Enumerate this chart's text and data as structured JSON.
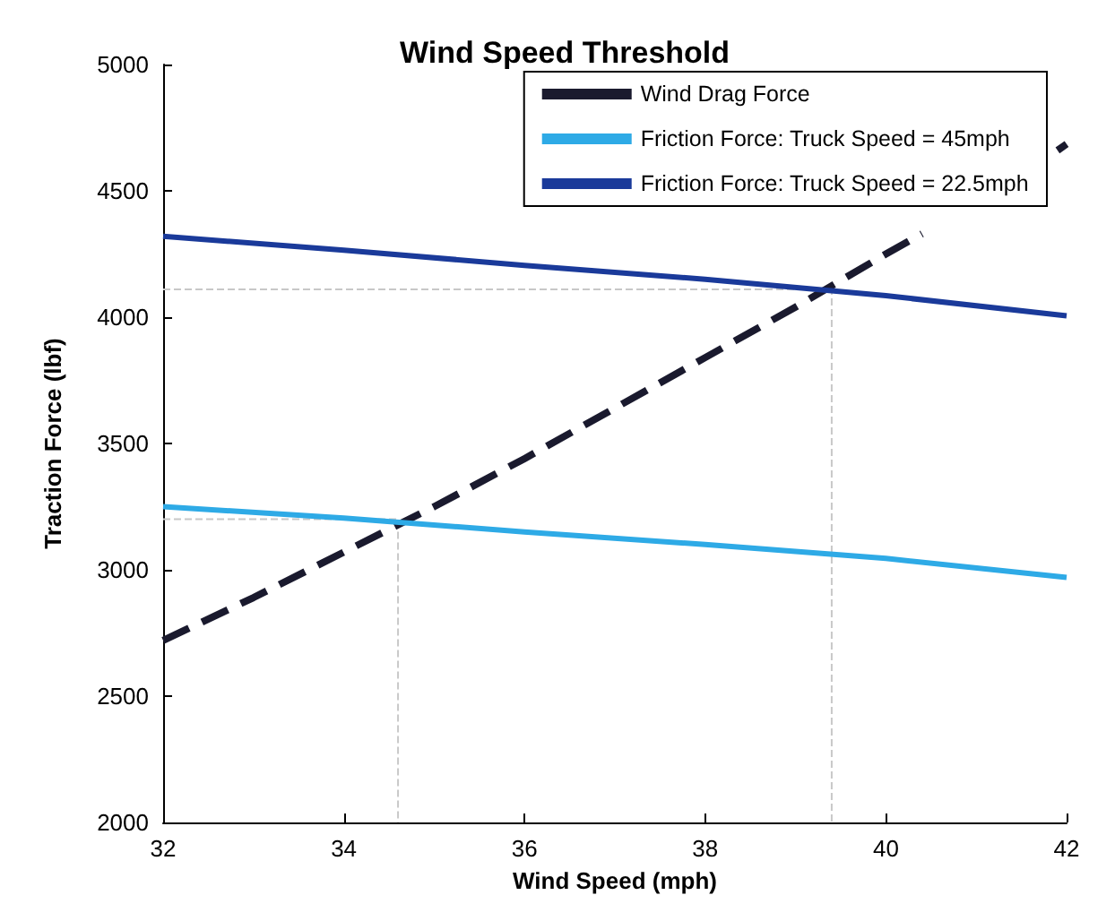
{
  "chart_data": {
    "type": "line",
    "title": "Wind Speed Threshold",
    "xlabel": "Wind Speed (mph)",
    "ylabel": "Traction Force (lbf)",
    "xlim": [
      32,
      42
    ],
    "xticks": [
      32,
      34,
      36,
      38,
      40,
      42
    ],
    "ylim": [
      2000,
      5000
    ],
    "yticks": [
      2000,
      2500,
      3000,
      3500,
      4000,
      4500,
      5000
    ],
    "grid": false,
    "legend": "top right",
    "marker": "none",
    "series": [
      {
        "name": "Wind Drag Force",
        "color": "#1a1a2e",
        "line_style": "dashed",
        "x": [
          32,
          33,
          34,
          35,
          36,
          37,
          38,
          39,
          40,
          40.4,
          41,
          41.9,
          42
        ],
        "values": [
          2720,
          2890,
          3070,
          3250,
          3440,
          3640,
          3840,
          4040,
          4250,
          4330,
          null,
          4660,
          4685
        ]
      },
      {
        "name": "Friction Force: Truck Speed = 45mph",
        "color": "#2eaae6",
        "line_style": "solid",
        "x": [
          32,
          34,
          36,
          38,
          40,
          42
        ],
        "values": [
          3250,
          3205,
          3150,
          3100,
          3045,
          2970
        ]
      },
      {
        "name": "Friction Force: Truck Speed = 22.5mph",
        "color": "#1a3a9a",
        "line_style": "solid",
        "x": [
          32,
          34,
          36,
          38,
          40,
          42
        ],
        "values": [
          4320,
          4265,
          4205,
          4150,
          4085,
          4005
        ]
      },
      {
        "color": "#c8c8c8",
        "line_style": "dashed",
        "x": [
          32,
          34.6,
          34.6
        ],
        "values": [
          3200,
          3200,
          2000
        ]
      },
      {
        "color": "#c8c8c8",
        "line_style": "dashed",
        "x": [
          32,
          39.4,
          39.4
        ],
        "values": [
          4110,
          4110,
          2000
        ]
      }
    ]
  }
}
